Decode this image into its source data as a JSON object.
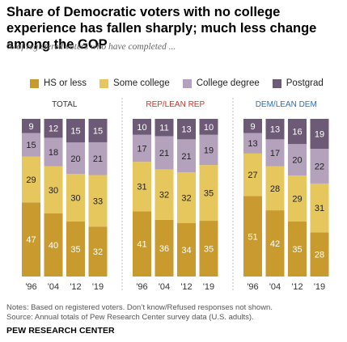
{
  "title": "Share of Democratic voters with no college experience has fallen sharply; much less change among the GOP",
  "subtitle": "% of registered voters who have completed ...",
  "legend": [
    {
      "label": "HS or less",
      "color": "#c99a2e"
    },
    {
      "label": "Some college",
      "color": "#e6c75e"
    },
    {
      "label": "College degree",
      "color": "#b4a2bc"
    },
    {
      "label": "Postgrad",
      "color": "#6d5a76"
    }
  ],
  "notes": {
    "line1": "Notes: Based on registered voters. Don’t know/Refused responses not shown.",
    "line2": "Source: Annual totals of Pew Research Center survey data (U.S. adults)."
  },
  "footer": "PEW RESEARCH CENTER",
  "chart_data": [
    {
      "type": "bar",
      "stacked": true,
      "panel_title": "TOTAL",
      "panel_title_color": "#333333",
      "categories": [
        "'96",
        "'04",
        "'12",
        "'19"
      ],
      "series": [
        {
          "name": "HS or less",
          "values": [
            47,
            40,
            35,
            32
          ]
        },
        {
          "name": "Some college",
          "values": [
            29,
            30,
            30,
            33
          ]
        },
        {
          "name": "College degree",
          "values": [
            15,
            18,
            20,
            21
          ]
        },
        {
          "name": "Postgrad",
          "values": [
            9,
            12,
            15,
            15
          ]
        }
      ]
    },
    {
      "type": "bar",
      "stacked": true,
      "panel_title": "REP/LEAN REP",
      "panel_title_color": "#c0392b",
      "categories": [
        "'96",
        "'04",
        "'12",
        "'19"
      ],
      "series": [
        {
          "name": "HS or less",
          "values": [
            41,
            36,
            34,
            35
          ]
        },
        {
          "name": "Some college",
          "values": [
            31,
            32,
            32,
            35
          ]
        },
        {
          "name": "College degree",
          "values": [
            17,
            21,
            21,
            19
          ]
        },
        {
          "name": "Postgrad",
          "values": [
            10,
            11,
            13,
            10
          ]
        }
      ]
    },
    {
      "type": "bar",
      "stacked": true,
      "panel_title": "DEM/LEAN DEM",
      "panel_title_color": "#2e6fb0",
      "categories": [
        "'96",
        "'04",
        "'12",
        "'19"
      ],
      "series": [
        {
          "name": "HS or less",
          "values": [
            51,
            42,
            35,
            28
          ]
        },
        {
          "name": "Some college",
          "values": [
            27,
            28,
            29,
            31
          ]
        },
        {
          "name": "College degree",
          "values": [
            13,
            17,
            20,
            22
          ]
        },
        {
          "name": "Postgrad",
          "values": [
            9,
            13,
            16,
            19
          ]
        }
      ]
    }
  ]
}
